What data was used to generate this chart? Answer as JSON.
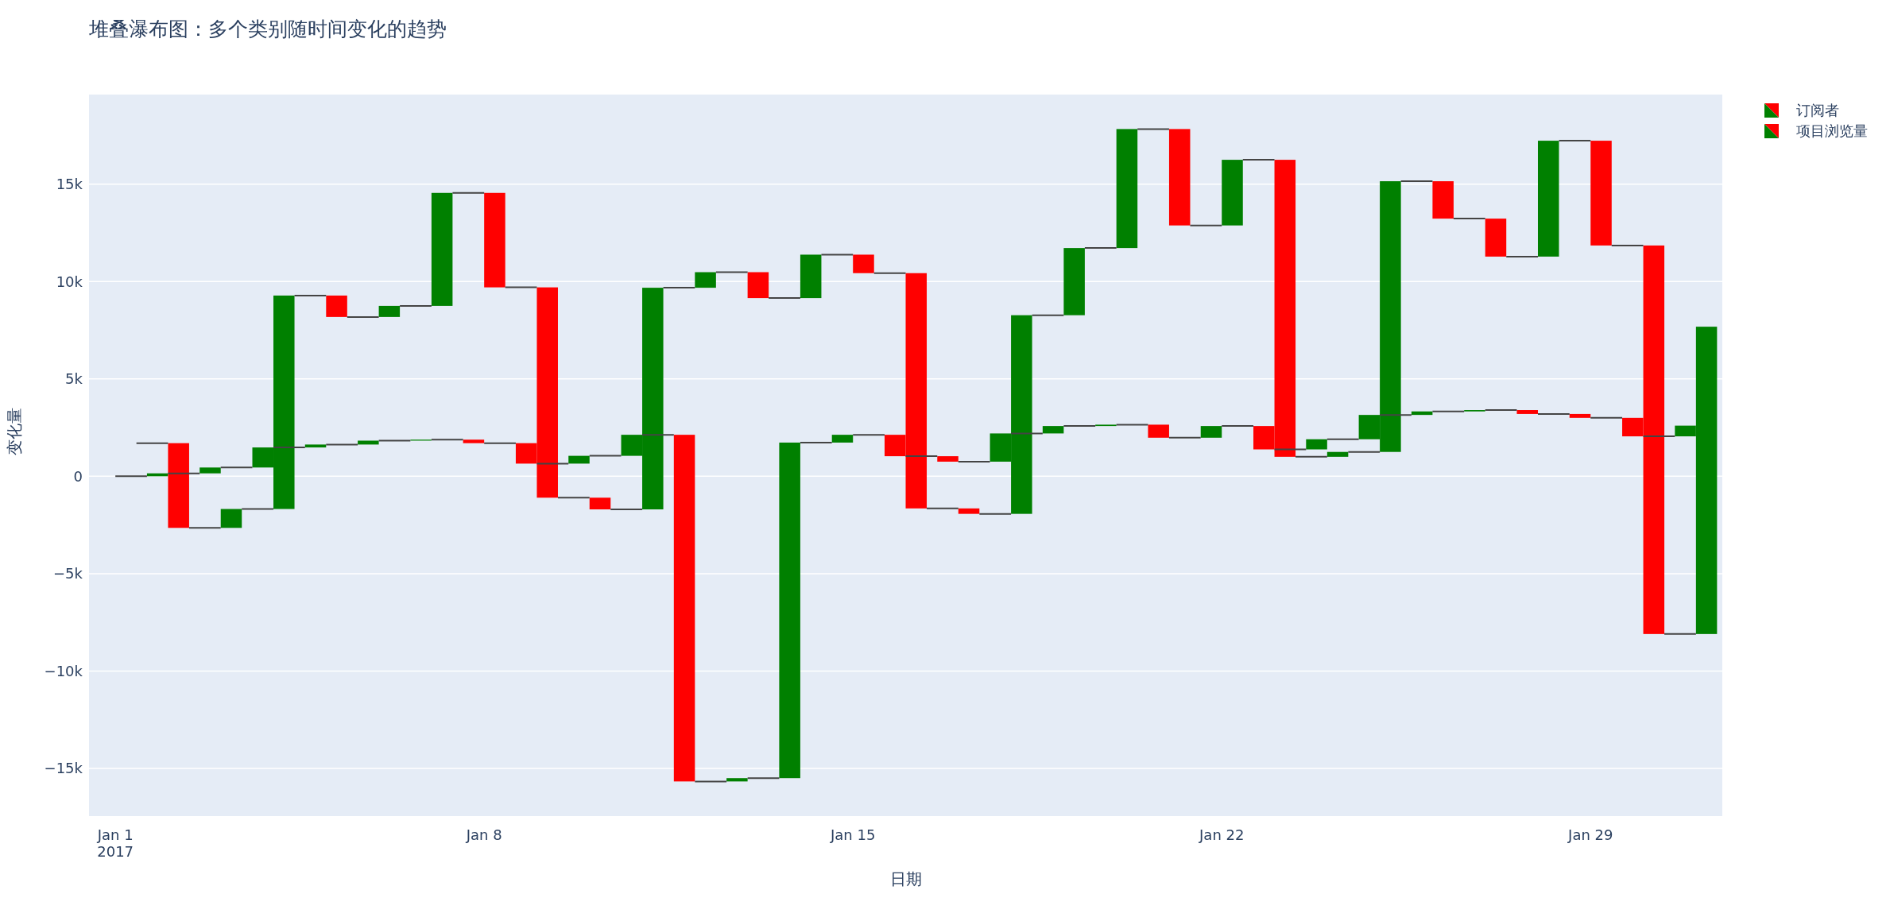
{
  "chart_data": {
    "type": "bar",
    "title": "堆叠瀑布图：多个类别随时间变化的趋势",
    "xlabel": "日期",
    "ylabel": "变化量",
    "x": [
      "2017-01-02",
      "2017-01-03",
      "2017-01-04",
      "2017-01-05",
      "2017-01-06",
      "2017-01-07",
      "2017-01-08",
      "2017-01-09",
      "2017-01-10",
      "2017-01-11",
      "2017-01-12",
      "2017-01-13",
      "2017-01-14",
      "2017-01-15",
      "2017-01-16",
      "2017-01-17",
      "2017-01-18",
      "2017-01-19",
      "2017-01-20",
      "2017-01-21",
      "2017-01-22",
      "2017-01-23",
      "2017-01-24",
      "2017-01-25",
      "2017-01-26",
      "2017-01-27",
      "2017-01-28",
      "2017-01-29",
      "2017-01-30",
      "2017-01-31"
    ],
    "series": [
      {
        "name": "订阅者",
        "base": [
          0,
          150,
          450,
          1480,
          1630,
          1830,
          1880,
          1700,
          650,
          1050,
          2130,
          -15670,
          -15500,
          1730,
          2130,
          1030,
          750,
          2200,
          2580,
          2650,
          1980,
          2580,
          1380,
          1900,
          3150,
          3330,
          3400,
          3200,
          3000,
          2050
        ],
        "values": [
          150,
          300,
          1030,
          150,
          200,
          50,
          -180,
          -1050,
          400,
          1080,
          -17800,
          170,
          17230,
          400,
          -1100,
          -280,
          1450,
          380,
          70,
          -670,
          600,
          -1200,
          520,
          1250,
          180,
          70,
          -200,
          -200,
          -950,
          550
        ],
        "colors": [
          "#008000",
          "#008000",
          "#008000",
          "#008000",
          "#008000",
          "#008000",
          "#ff0000",
          "#ff0000",
          "#008000",
          "#008000",
          "#ff0000",
          "#008000",
          "#008000",
          "#008000",
          "#ff0000",
          "#ff0000",
          "#008000",
          "#008000",
          "#008000",
          "#ff0000",
          "#008000",
          "#ff0000",
          "#008000",
          "#008000",
          "#008000",
          "#008000",
          "#ff0000",
          "#ff0000",
          "#ff0000",
          "#008000"
        ]
      },
      {
        "name": "项目浏览量",
        "base": [
          1700,
          -2650,
          -1680,
          9280,
          8180,
          8750,
          14550,
          9700,
          -1100,
          -1700,
          9680,
          10480,
          9150,
          11380,
          10430,
          -1650,
          -1930,
          8270,
          11720,
          17830,
          12880,
          16250,
          1000,
          1250,
          15150,
          13230,
          11280,
          17230,
          11850,
          -8100
        ],
        "values": [
          -4350,
          970,
          10960,
          -1100,
          570,
          5800,
          -4850,
          -10800,
          -600,
          11380,
          800,
          -1330,
          2230,
          -950,
          -12080,
          -280,
          10200,
          3450,
          6110,
          -4950,
          3370,
          -15250,
          250,
          13900,
          -1920,
          -1950,
          5950,
          -5380,
          -19950,
          15780
        ],
        "colors": [
          "#ff0000",
          "#008000",
          "#008000",
          "#ff0000",
          "#008000",
          "#008000",
          "#ff0000",
          "#ff0000",
          "#ff0000",
          "#008000",
          "#008000",
          "#ff0000",
          "#008000",
          "#ff0000",
          "#ff0000",
          "#ff0000",
          "#008000",
          "#008000",
          "#008000",
          "#ff0000",
          "#008000",
          "#ff0000",
          "#008000",
          "#008000",
          "#ff0000",
          "#ff0000",
          "#008000",
          "#ff0000",
          "#ff0000",
          "#008000"
        ]
      },
      {
        "type": "line",
        "color": "#444444",
        "x": [
          "2017-01-01T00:00",
          "2017-01-01T14:24",
          "2017-01-01T18:00",
          "2017-01-02T00:00",
          "2017-01-02T14:24",
          "2017-01-02T18:00",
          "2017-01-03T00:00",
          "2017-01-03T14:24",
          "2017-01-03T18:00",
          "2017-01-04T00:00",
          "2017-01-04T14:24",
          "2017-01-04T18:00",
          "2017-01-05T00:00",
          "2017-01-05T14:24",
          "2017-01-05T18:00",
          "2017-01-06T00:00",
          "2017-01-06T14:24",
          "2017-01-06T18:00",
          "2017-01-07T00:00",
          "2017-01-07T14:24",
          "2017-01-07T18:00",
          "2017-01-08T00:00",
          "2017-01-08T14:24",
          "2017-01-08T18:00",
          "2017-01-09T00:00",
          "2017-01-09T14:24",
          "2017-01-09T18:00",
          "2017-01-10T00:00",
          "2017-01-10T14:24",
          "2017-01-10T18:00",
          "2017-01-11T00:00",
          "2017-01-11T14:24",
          "2017-01-11T18:00",
          "2017-01-12T00:00",
          "2017-01-12T14:24",
          "2017-01-12T18:00",
          "2017-01-13T00:00",
          "2017-01-13T14:24",
          "2017-01-13T18:00",
          "2017-01-14T00:00",
          "2017-01-14T14:24",
          "2017-01-14T18:00",
          "2017-01-15T00:00",
          "2017-01-15T14:24",
          "2017-01-15T18:00",
          "2017-01-16T00:00",
          "2017-01-16T14:24",
          "2017-01-16T18:00",
          "2017-01-17T00:00",
          "2017-01-17T14:24",
          "2017-01-17T18:00",
          "2017-01-18T00:00",
          "2017-01-18T14:24",
          "2017-01-18T18:00",
          "2017-01-19T00:00",
          "2017-01-19T14:24",
          "2017-01-19T18:00",
          "2017-01-20T00:00",
          "2017-01-20T14:24",
          "2017-01-20T18:00",
          "2017-01-21T00:00",
          "2017-01-21T14:24",
          "2017-01-21T18:00",
          "2017-01-22T00:00",
          "2017-01-22T14:24",
          "2017-01-22T18:00",
          "2017-01-23T00:00",
          "2017-01-23T14:24",
          "2017-01-23T18:00",
          "2017-01-24T00:00",
          "2017-01-24T14:24",
          "2017-01-24T18:00",
          "2017-01-25T00:00",
          "2017-01-25T14:24",
          "2017-01-25T18:00",
          "2017-01-26T00:00",
          "2017-01-26T14:24",
          "2017-01-26T18:00",
          "2017-01-27T00:00",
          "2017-01-27T14:24",
          "2017-01-27T18:00",
          "2017-01-28T00:00",
          "2017-01-28T14:24",
          "2017-01-28T18:00",
          "2017-01-29T00:00",
          "2017-01-29T14:24",
          "2017-01-29T18:00",
          "2017-01-30T00:00",
          "2017-01-30T14:24"
        ],
        "values": [
          0,
          0,
          null,
          150,
          150,
          null,
          450,
          450,
          null,
          1480,
          1480,
          null,
          1630,
          1630,
          null,
          1830,
          1830,
          null,
          1880,
          1880,
          null,
          1700,
          1700,
          null,
          650,
          650,
          null,
          1050,
          1050,
          null,
          2130,
          2130,
          null,
          -15670,
          -15670,
          null,
          -15500,
          -15500,
          null,
          1730,
          1730,
          null,
          2130,
          2130,
          null,
          1030,
          1030,
          null,
          750,
          750,
          null,
          2200,
          2200,
          null,
          2580,
          2580,
          null,
          2650,
          2650,
          null,
          1980,
          1980,
          null,
          2580,
          2580,
          null,
          1380,
          1380,
          null,
          1900,
          1900,
          null,
          3150,
          3150,
          null,
          3330,
          3330,
          null,
          3400,
          3400,
          null,
          3200,
          3200,
          null,
          3000,
          3000,
          null,
          2050,
          2050
        ]
      },
      {
        "type": "line",
        "color": "#444444",
        "x": [
          "2017-01-01T09:36",
          "2017-01-02T00:00",
          "2017-01-02T04:00",
          "2017-01-02T09:36",
          "2017-01-03T00:00",
          "2017-01-03T04:00",
          "2017-01-03T09:36",
          "2017-01-04T00:00",
          "2017-01-04T04:00",
          "2017-01-04T09:36",
          "2017-01-05T00:00",
          "2017-01-05T04:00",
          "2017-01-05T09:36",
          "2017-01-06T00:00",
          "2017-01-06T04:00",
          "2017-01-06T09:36",
          "2017-01-07T00:00",
          "2017-01-07T04:00",
          "2017-01-07T09:36",
          "2017-01-08T00:00",
          "2017-01-08T04:00",
          "2017-01-08T09:36",
          "2017-01-09T00:00",
          "2017-01-09T04:00",
          "2017-01-09T09:36",
          "2017-01-10T00:00",
          "2017-01-10T04:00",
          "2017-01-10T09:36",
          "2017-01-11T00:00",
          "2017-01-11T04:00",
          "2017-01-11T09:36",
          "2017-01-12T00:00",
          "2017-01-12T04:00",
          "2017-01-12T09:36",
          "2017-01-13T00:00",
          "2017-01-13T04:00",
          "2017-01-13T09:36",
          "2017-01-14T00:00",
          "2017-01-14T04:00",
          "2017-01-14T09:36",
          "2017-01-15T00:00",
          "2017-01-15T04:00",
          "2017-01-15T09:36",
          "2017-01-16T00:00",
          "2017-01-16T04:00",
          "2017-01-16T09:36",
          "2017-01-17T00:00",
          "2017-01-17T04:00",
          "2017-01-17T09:36",
          "2017-01-18T00:00",
          "2017-01-18T04:00",
          "2017-01-18T09:36",
          "2017-01-19T00:00",
          "2017-01-19T04:00",
          "2017-01-19T09:36",
          "2017-01-20T00:00",
          "2017-01-20T04:00",
          "2017-01-20T09:36",
          "2017-01-21T00:00",
          "2017-01-21T04:00",
          "2017-01-21T09:36",
          "2017-01-22T00:00",
          "2017-01-22T04:00",
          "2017-01-22T09:36",
          "2017-01-23T00:00",
          "2017-01-23T04:00",
          "2017-01-23T09:36",
          "2017-01-24T00:00",
          "2017-01-24T04:00",
          "2017-01-24T09:36",
          "2017-01-25T00:00",
          "2017-01-25T04:00",
          "2017-01-25T09:36",
          "2017-01-26T00:00",
          "2017-01-26T04:00",
          "2017-01-26T09:36",
          "2017-01-27T00:00",
          "2017-01-27T04:00",
          "2017-01-27T09:36",
          "2017-01-28T00:00",
          "2017-01-28T04:00",
          "2017-01-28T09:36",
          "2017-01-29T00:00",
          "2017-01-29T04:00",
          "2017-01-29T09:36",
          "2017-01-30T00:00",
          "2017-01-30T04:00",
          "2017-01-30T09:36",
          "2017-01-31T00:00"
        ],
        "values": [
          1700,
          1700,
          null,
          -2650,
          -2650,
          null,
          -1680,
          -1680,
          null,
          9280,
          9280,
          null,
          8180,
          8180,
          null,
          8750,
          8750,
          null,
          14550,
          14550,
          null,
          9700,
          9700,
          null,
          -1100,
          -1100,
          null,
          -1700,
          -1700,
          null,
          9680,
          9680,
          null,
          10480,
          10480,
          null,
          9150,
          9150,
          null,
          11380,
          11380,
          null,
          10430,
          10430,
          null,
          -1650,
          -1650,
          null,
          -1930,
          -1930,
          null,
          8270,
          8270,
          null,
          11720,
          11720,
          null,
          17830,
          17830,
          null,
          12880,
          12880,
          null,
          16250,
          16250,
          null,
          1000,
          1000,
          null,
          1250,
          1250,
          null,
          15150,
          15150,
          null,
          13230,
          13230,
          null,
          11280,
          11280,
          null,
          17230,
          17230,
          null,
          11850,
          11850,
          null,
          -8100,
          -8100
        ]
      }
    ],
    "xlim": [
      "2016-12-31T12:00",
      "2017-01-31T12:00"
    ],
    "xticks": [
      {
        "value": "2017-01-01",
        "label": "Jan 1\n2017"
      },
      {
        "value": "2017-01-08",
        "label": "Jan 8"
      },
      {
        "value": "2017-01-15",
        "label": "Jan 15"
      },
      {
        "value": "2017-01-22",
        "label": "Jan 22"
      },
      {
        "value": "2017-01-29",
        "label": "Jan 29"
      }
    ],
    "ylim": [
      -17450,
      19600
    ],
    "yticks": [
      {
        "value": -15000,
        "label": "−15k"
      },
      {
        "value": -10000,
        "label": "−10k"
      },
      {
        "value": -5000,
        "label": "−5k"
      },
      0,
      {
        "value": 5000,
        "label": "5k"
      },
      {
        "value": 10000,
        "label": "10k"
      },
      {
        "value": 15000,
        "label": "15k"
      }
    ],
    "grid": "y",
    "legend": "top right"
  }
}
